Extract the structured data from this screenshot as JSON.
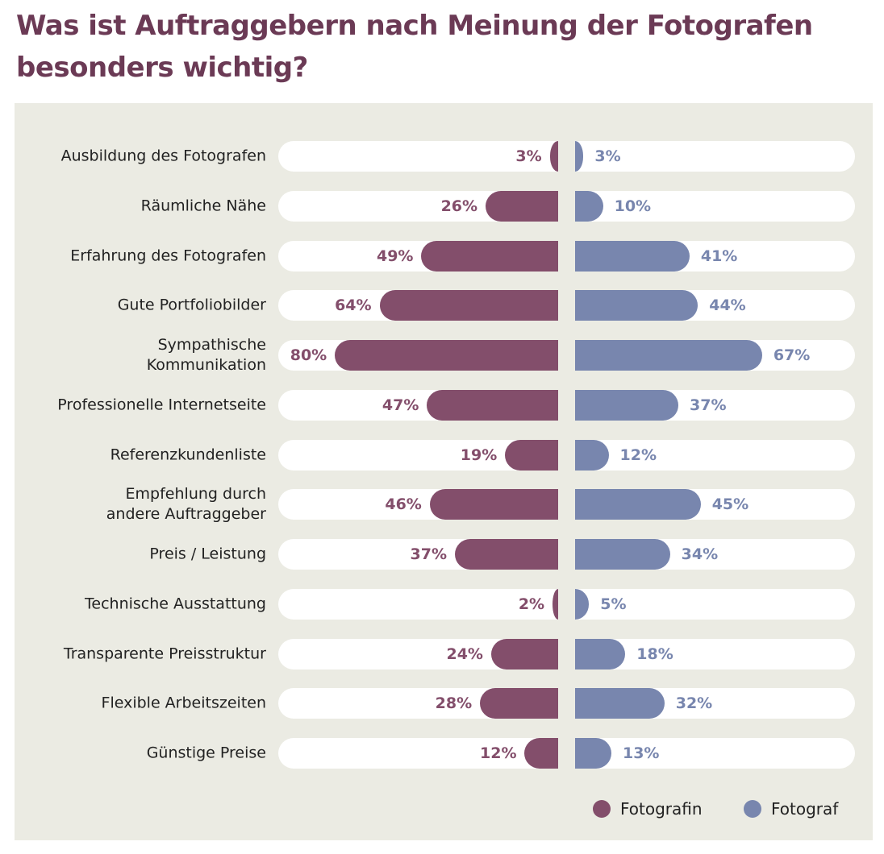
{
  "title": "Was ist Auftraggebern nach Meinung der Fotografen besonders wichtig?",
  "colors": {
    "fotografin": "#834e6b",
    "fotograf": "#7886ae",
    "title": "#6b3a55",
    "panel": "#ebebe3"
  },
  "chart_data": {
    "type": "bar",
    "orientation": "horizontal-diverging",
    "title": "Was ist Auftraggebern nach Meinung der Fotografen besonders wichtig?",
    "unit": "%",
    "xlim": [
      0,
      100
    ],
    "grid": false,
    "legend_position": "bottom-right",
    "categories": [
      "Ausbildung des Fotografen",
      "Räumliche Nähe",
      "Erfahrung des Fotografen",
      "Gute Portfoliobilder",
      "Sympathische\nKommunikation",
      "Professionelle Internetseite",
      "Referenzkundenliste",
      "Empfehlung durch\nandere Auftraggeber",
      "Preis / Leistung",
      "Technische Ausstattung",
      "Transparente Preisstruktur",
      "Flexible Arbeitszeiten",
      "Günstige Preise"
    ],
    "series": [
      {
        "name": "Fotografin",
        "side": "left",
        "values": [
          3,
          26,
          49,
          64,
          80,
          47,
          19,
          46,
          37,
          2,
          24,
          28,
          12
        ]
      },
      {
        "name": "Fotograf",
        "side": "right",
        "values": [
          3,
          10,
          41,
          44,
          67,
          37,
          12,
          45,
          34,
          5,
          18,
          32,
          13
        ]
      }
    ]
  },
  "legend": [
    {
      "label": "Fotografin",
      "color": "#834e6b"
    },
    {
      "label": "Fotograf",
      "color": "#7886ae"
    }
  ]
}
